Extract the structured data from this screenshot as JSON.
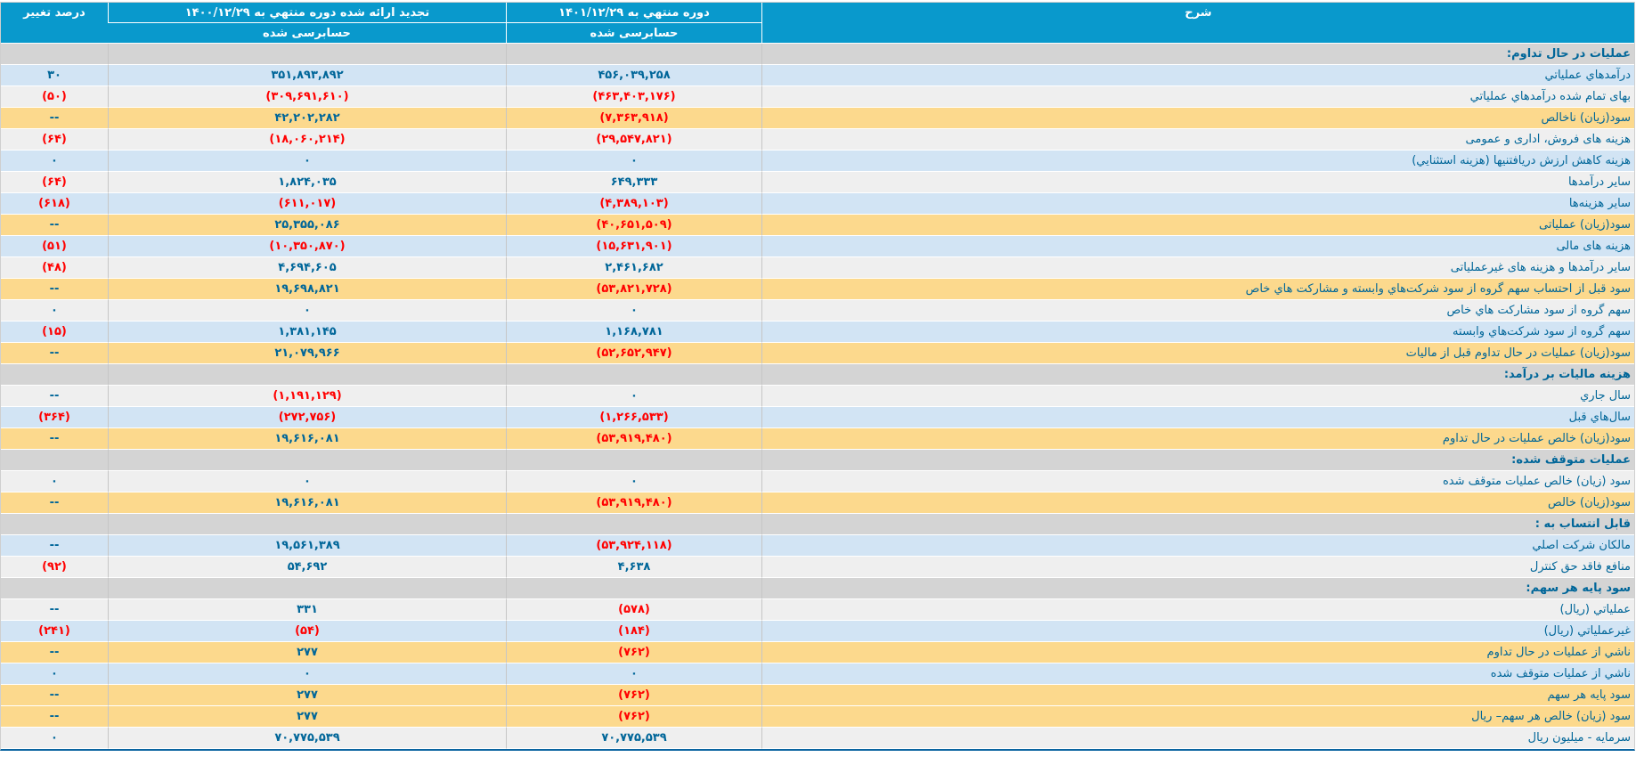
{
  "header": {
    "description": "شرح",
    "current_period": "دوره منتهي به ۱۴۰۱/۱۲/۲۹",
    "current_sub": "حسابرسی شده",
    "prior_period": "تجدید ارائه شده دوره منتهي به ۱۴۰۰/۱۲/۲۹",
    "prior_sub": "حسابرسی شده",
    "percent_change": "درصد تغییر"
  },
  "colors": {
    "header_bg": "#0999cc",
    "row_blue": "#d2e4f4",
    "row_white": "#efefef",
    "row_yellow": "#fcd98d",
    "row_section": "#d4d4d4",
    "text_blue": "#006699",
    "text_negative": "#ff0000",
    "bottom_border": "#0a64a0"
  },
  "table": {
    "rows": [
      {
        "style": "section",
        "label": "عملیات در حال تداوم:",
        "v1401": "",
        "v1400": "",
        "chg": ""
      },
      {
        "style": "blue",
        "label": "درآمدهاي عملياتي",
        "v1401": "۴۵۶,۰۳۹,۲۵۸",
        "v1400": "۳۵۱,۸۹۳,۸۹۲",
        "chg": "۳۰"
      },
      {
        "style": "white",
        "label": "بهای تمام شده درآمدهاي عملياتي",
        "v1401": "(۴۶۳,۴۰۳,۱۷۶)",
        "v1400": "(۳۰۹,۶۹۱,۶۱۰)",
        "chg": "(۵۰)"
      },
      {
        "style": "yellow",
        "label": "سود(زيان) ناخالص",
        "v1401": "(۷,۳۶۳,۹۱۸)",
        "v1400": "۴۲,۲۰۲,۲۸۲",
        "chg": "--"
      },
      {
        "style": "white",
        "label": "هزينه های فروش، اداری و عمومی",
        "v1401": "(۲۹,۵۴۷,۸۲۱)",
        "v1400": "(۱۸,۰۶۰,۲۱۴)",
        "chg": "(۶۴)"
      },
      {
        "style": "blue",
        "label": "هزينه كاهش ارزش دريافتنيها (هزينه استثنايي)",
        "v1401": "۰",
        "v1400": "۰",
        "chg": "۰"
      },
      {
        "style": "white",
        "label": "ساير درآمدها",
        "v1401": "۶۴۹,۳۳۳",
        "v1400": "۱,۸۲۴,۰۳۵",
        "chg": "(۶۴)"
      },
      {
        "style": "blue",
        "label": "ساير هزينه‌ها",
        "v1401": "(۴,۳۸۹,۱۰۳)",
        "v1400": "(۶۱۱,۰۱۷)",
        "chg": "(۶۱۸)"
      },
      {
        "style": "yellow",
        "label": "سود(زيان) عملياتی",
        "v1401": "(۴۰,۶۵۱,۵۰۹)",
        "v1400": "۲۵,۳۵۵,۰۸۶",
        "chg": "--"
      },
      {
        "style": "blue",
        "label": "هزينه های مالی",
        "v1401": "(۱۵,۶۳۱,۹۰۱)",
        "v1400": "(۱۰,۳۵۰,۸۷۰)",
        "chg": "(۵۱)"
      },
      {
        "style": "white",
        "label": "ساير درآمدها و هزينه های غيرعملياتی",
        "v1401": "۲,۴۶۱,۶۸۲",
        "v1400": "۴,۶۹۴,۶۰۵",
        "chg": "(۴۸)"
      },
      {
        "style": "yellow",
        "label": "سود قبل از احتساب سهم گروه از سود شرکت‌هاي وابسته و مشارکت هاي خاص",
        "v1401": "(۵۳,۸۲۱,۷۲۸)",
        "v1400": "۱۹,۶۹۸,۸۲۱",
        "chg": "--"
      },
      {
        "style": "white",
        "label": "سهم گروه از سود مشارکت هاي خاص",
        "v1401": "۰",
        "v1400": "۰",
        "chg": "۰"
      },
      {
        "style": "blue",
        "label": "سهم گروه از سود شرکت‌هاي وابسته",
        "v1401": "۱,۱۶۸,۷۸۱",
        "v1400": "۱,۳۸۱,۱۴۵",
        "chg": "(۱۵)"
      },
      {
        "style": "yellow",
        "label": "سود(زيان) عمليات در حال تداوم قبل از ماليات",
        "v1401": "(۵۲,۶۵۲,۹۴۷)",
        "v1400": "۲۱,۰۷۹,۹۶۶",
        "chg": "--"
      },
      {
        "style": "section",
        "label": "هزينه ماليات بر درآمد:",
        "v1401": "",
        "v1400": "",
        "chg": ""
      },
      {
        "style": "white",
        "label": "سال جاري",
        "v1401": "۰",
        "v1400": "(۱,۱۹۱,۱۲۹)",
        "chg": "--"
      },
      {
        "style": "blue",
        "label": "سال‌هاي قبل",
        "v1401": "(۱,۲۶۶,۵۳۳)",
        "v1400": "(۲۷۲,۷۵۶)",
        "chg": "(۳۶۴)"
      },
      {
        "style": "yellow",
        "label": "سود(زيان) خالص عمليات در حال تداوم",
        "v1401": "(۵۳,۹۱۹,۴۸۰)",
        "v1400": "۱۹,۶۱۶,۰۸۱",
        "chg": "--"
      },
      {
        "style": "section",
        "label": "عمليات متوقف شده:",
        "v1401": "",
        "v1400": "",
        "chg": ""
      },
      {
        "style": "white",
        "label": "سود (زيان) خالص عمليات متوقف شده",
        "v1401": "۰",
        "v1400": "۰",
        "chg": "۰"
      },
      {
        "style": "yellow",
        "label": "سود(زيان) خالص",
        "v1401": "(۵۳,۹۱۹,۴۸۰)",
        "v1400": "۱۹,۶۱۶,۰۸۱",
        "chg": "--"
      },
      {
        "style": "section",
        "label": "قابل انتساب به :",
        "v1401": "",
        "v1400": "",
        "chg": ""
      },
      {
        "style": "blue",
        "label": "مالکان شرکت اصلي",
        "v1401": "(۵۳,۹۲۴,۱۱۸)",
        "v1400": "۱۹,۵۶۱,۳۸۹",
        "chg": "--"
      },
      {
        "style": "white",
        "label": "منافع فاقد حق کنترل",
        "v1401": "۴,۶۳۸",
        "v1400": "۵۴,۶۹۲",
        "chg": "(۹۲)"
      },
      {
        "style": "section",
        "label": "سود پايه هر سهم:",
        "v1401": "",
        "v1400": "",
        "chg": ""
      },
      {
        "style": "white",
        "label": "عملياتي (ريال)",
        "v1401": "(۵۷۸)",
        "v1400": "۳۳۱",
        "chg": "--"
      },
      {
        "style": "blue",
        "label": "غيرعملياتي (ريال)",
        "v1401": "(۱۸۴)",
        "v1400": "(۵۴)",
        "chg": "(۲۴۱)"
      },
      {
        "style": "yellow",
        "label": "ناشي از عمليات در حال تداوم",
        "v1401": "(۷۶۲)",
        "v1400": "۲۷۷",
        "chg": "--"
      },
      {
        "style": "blue",
        "label": "ناشي از عمليات متوقف شده",
        "v1401": "۰",
        "v1400": "۰",
        "chg": "۰"
      },
      {
        "style": "yellow",
        "label": "سود پايه هر سهم",
        "v1401": "(۷۶۲)",
        "v1400": "۲۷۷",
        "chg": "--"
      },
      {
        "style": "yellow",
        "label": "سود (زيان) خالص هر سهم– ريال",
        "v1401": "(۷۶۲)",
        "v1400": "۲۷۷",
        "chg": "--"
      },
      {
        "style": "white",
        "label": "سرمايه - ميليون ريال",
        "v1401": "۷۰,۷۷۵,۵۳۹",
        "v1400": "۷۰,۷۷۵,۵۳۹",
        "chg": "۰"
      }
    ]
  }
}
